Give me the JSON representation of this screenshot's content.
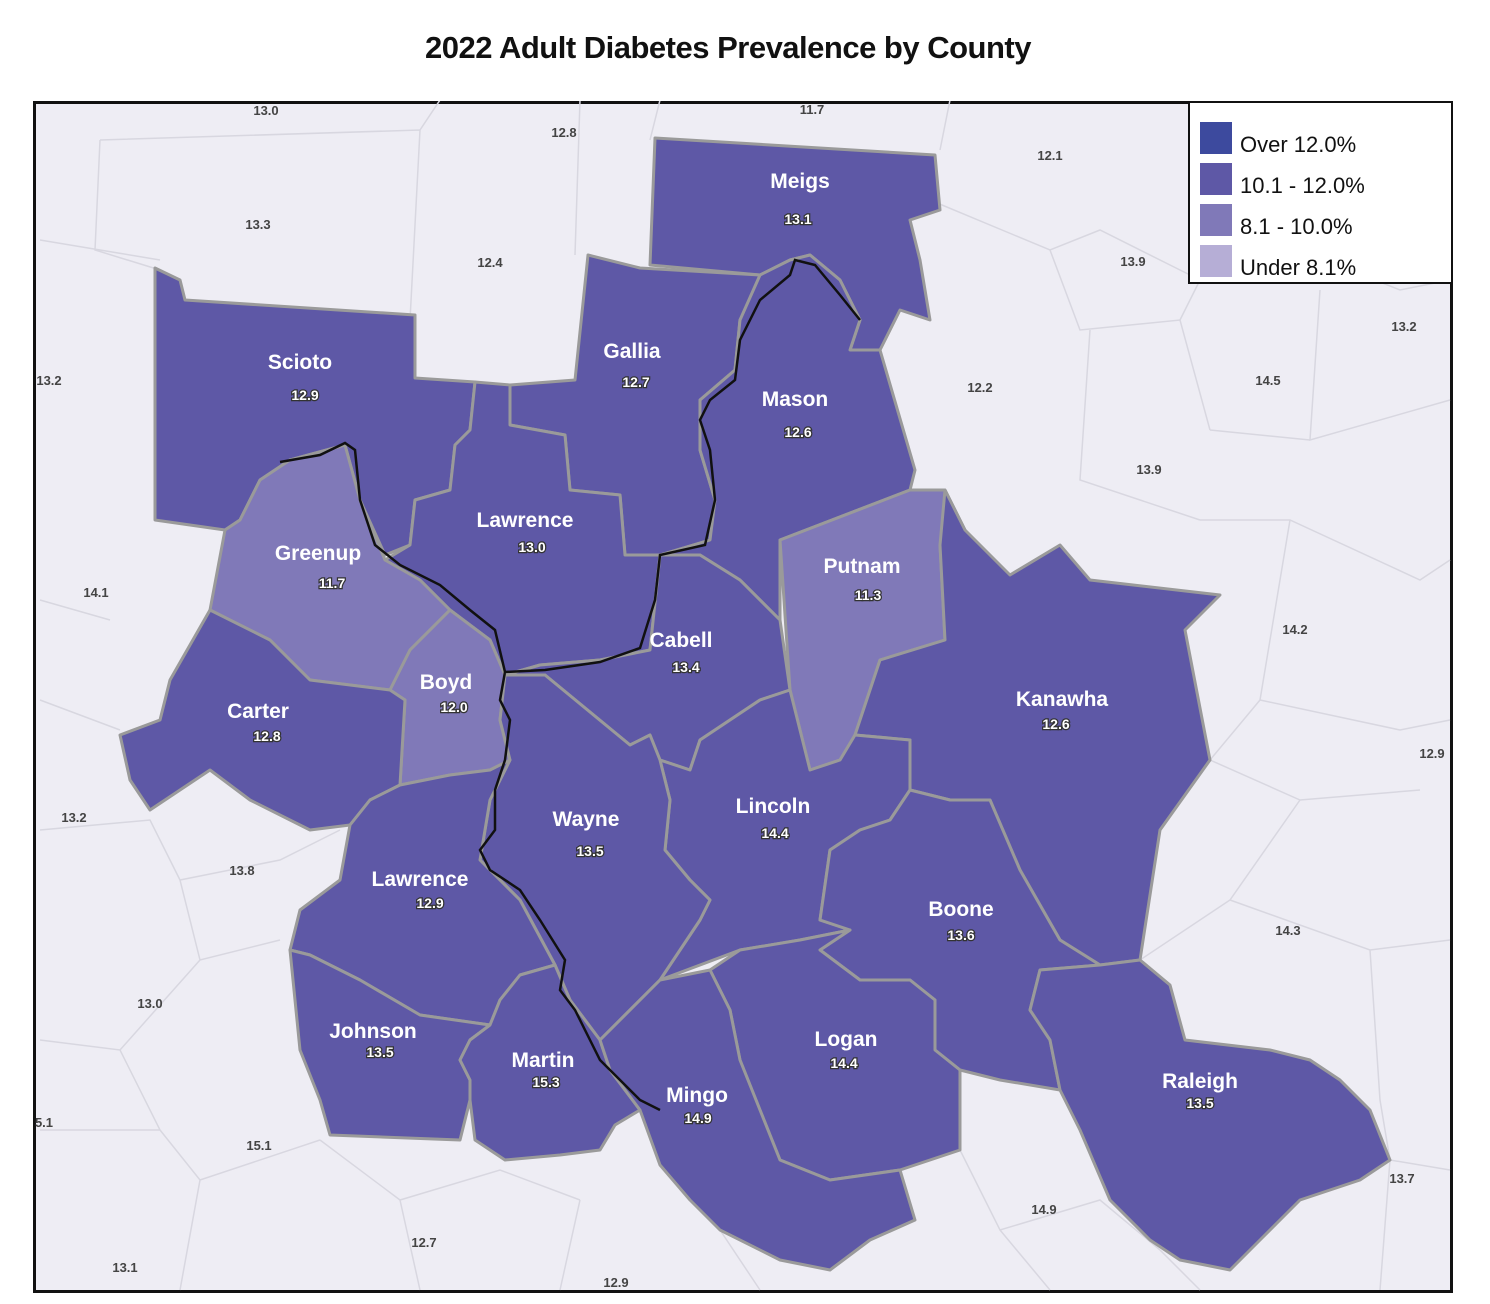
{
  "title": "2022 Adult Diabetes Prevalence by County",
  "legend": {
    "items": [
      {
        "label": "Over 12.0%",
        "color": "#3d4a9e"
      },
      {
        "label": "10.1 - 12.0%",
        "color": "#5e58a6"
      },
      {
        "label": "8.1 - 10.0%",
        "color": "#8079b8"
      },
      {
        "label": "Under 8.1%",
        "color": "#b6aed6"
      }
    ]
  },
  "colors": {
    "county_fill": "#5e58a6",
    "county_fill_light": "#8079b8",
    "county_border": "#9a9a9a",
    "state_border": "#111111",
    "background": "#eeedf4",
    "background_county_border": "#d8d7e0"
  },
  "counties": [
    {
      "name": "Meigs",
      "value": "13.1",
      "fill": "dark"
    },
    {
      "name": "Scioto",
      "value": "12.9",
      "fill": "dark"
    },
    {
      "name": "Gallia",
      "value": "12.7",
      "fill": "dark"
    },
    {
      "name": "Mason",
      "value": "12.6",
      "fill": "dark"
    },
    {
      "name": "Lawrence",
      "value": "13.0",
      "fill": "dark"
    },
    {
      "name": "Greenup",
      "value": "11.7",
      "fill": "light"
    },
    {
      "name": "Putnam",
      "value": "11.3",
      "fill": "light"
    },
    {
      "name": "Cabell",
      "value": "13.4",
      "fill": "dark"
    },
    {
      "name": "Boyd",
      "value": "12.0",
      "fill": "light"
    },
    {
      "name": "Carter",
      "value": "12.8",
      "fill": "dark"
    },
    {
      "name": "Kanawha",
      "value": "12.6",
      "fill": "dark"
    },
    {
      "name": "Lincoln",
      "value": "14.4",
      "fill": "dark"
    },
    {
      "name": "Wayne",
      "value": "13.5",
      "fill": "dark"
    },
    {
      "name": "Lawrence",
      "value": "12.9",
      "fill": "dark"
    },
    {
      "name": "Boone",
      "value": "13.6",
      "fill": "dark"
    },
    {
      "name": "Johnson",
      "value": "13.5",
      "fill": "dark"
    },
    {
      "name": "Martin",
      "value": "15.3",
      "fill": "dark"
    },
    {
      "name": "Logan",
      "value": "14.4",
      "fill": "dark"
    },
    {
      "name": "Mingo",
      "value": "14.9",
      "fill": "dark"
    },
    {
      "name": "Raleigh",
      "value": "13.5",
      "fill": "dark"
    }
  ],
  "background_values": [
    "13.0",
    "11.7",
    "12.8",
    "12.1",
    "13.3",
    "12.4",
    "13.9",
    "13.2",
    "13.2",
    "12.2",
    "14.5",
    "13.9",
    "14.1",
    "14.2",
    "12.9",
    "13.2",
    "13.8",
    "14.3",
    "13.0",
    "5.1",
    "15.1",
    "13.7",
    "14.9",
    "12.7",
    "13.1",
    "12.9"
  ]
}
